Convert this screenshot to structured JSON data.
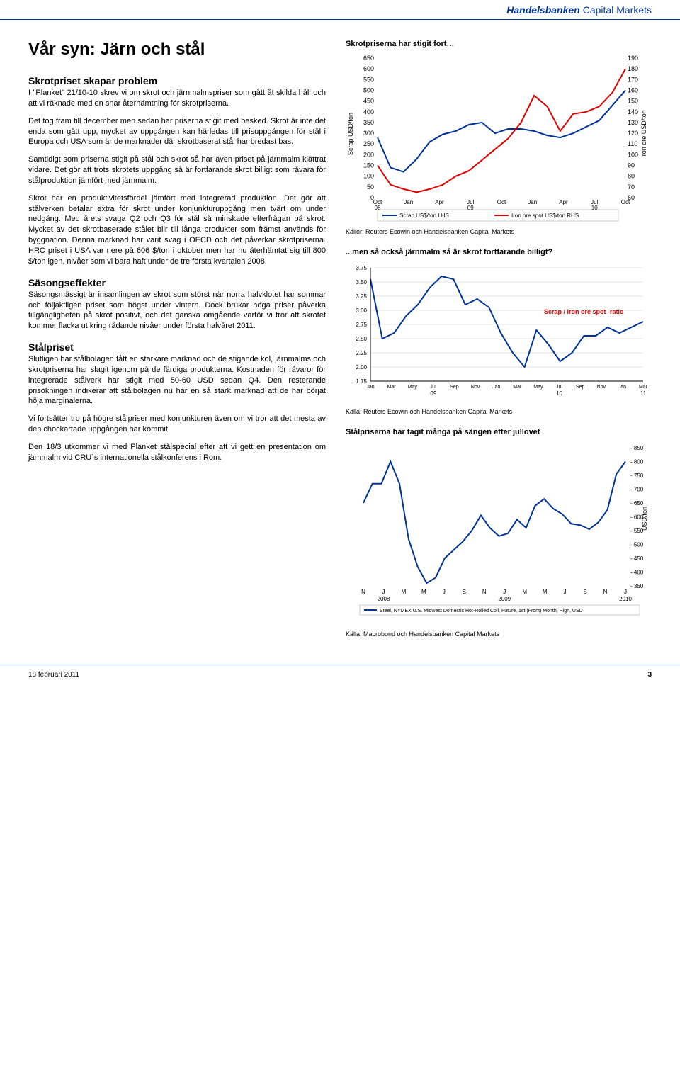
{
  "header": {
    "brand_main": "Handelsbanken",
    "brand_sub": "Capital Markets"
  },
  "title": "Vår syn: Järn och stål",
  "left": {
    "h1": "Skrotpriset skapar problem",
    "p1": "I \"Planket\" 21/10-10 skrev vi om skrot och järnmalmspriser som gått åt skilda håll och att vi räknade med en snar återhämtning för skrotpriserna.",
    "p2": "Det tog fram till december men sedan har priserna stigit med besked. Skrot är inte det enda som gått upp, mycket av uppgången kan härledas till prisuppgången för stål i Europa och USA som är de marknader där skrotbaserat stål har bredast bas.",
    "p3": "Samtidigt som priserna stigit på stål och skrot så har även priset på järnmalm klättrat vidare. Det gör att trots skrotets uppgång så är fortfarande skrot billigt som råvara för stålproduktion jämfört med järnmalm.",
    "p4": "Skrot har en produktivitetsfördel jämfört med integrerad produktion. Det gör att stålverken betalar extra för skrot under konjunkturuppgång men tvärt om under nedgång. Med årets svaga Q2 och Q3 för stål så minskade efterfrågan på skrot. Mycket av det skrotbaserade stålet blir till långa produkter som främst används för byggnation. Denna marknad har varit svag i OECD och det påverkar skrotpriserna. HRC priset i USA var nere på 606 $/ton i oktober men har nu återhämtat sig till 800 $/ton igen, nivåer som vi bara haft under de tre första kvartalen 2008.",
    "h2": "Säsongseffekter",
    "p5": "Säsongsmässigt är insamlingen av skrot som störst när norra halvklotet har sommar och följaktligen priset som högst under vintern. Dock brukar höga priser påverka tillgängligheten på skrot positivt, och det ganska omgående varför vi tror att skrotet kommer flacka ut kring rådande nivåer under första halvåret 2011.",
    "h3": "Stålpriset",
    "p6": "Slutligen har stålbolagen fått en starkare marknad och de stigande kol, järnmalms och skrotpriserna har slagit igenom på de färdiga produkterna. Kostnaden för råvaror för integrerade stålverk har stigit med 50-60 USD sedan Q4. Den resterande prisökningen indikerar att stålbolagen nu har en så stark marknad att de har börjat höja marginalerna.",
    "p7": "Vi fortsätter tro på högre stålpriser med konjunkturen även om vi tror att det mesta av den chockartade uppgången har kommit.",
    "p8": "Den 18/3 utkommer vi med Planket stålspecial efter att vi gett en presentation om järnmalm vid CRU´s internationella stålkonferens i Rom."
  },
  "chart1": {
    "title": "Skrotpriserna har stigit fort…",
    "type": "line",
    "left_label": "Scrap USD/ton",
    "right_label": "Iron ore USD/ton",
    "left_ticks": [
      0,
      50,
      100,
      150,
      200,
      250,
      300,
      350,
      400,
      450,
      500,
      550,
      600,
      650
    ],
    "right_ticks": [
      60,
      70,
      80,
      90,
      100,
      110,
      120,
      130,
      140,
      150,
      160,
      170,
      180,
      190
    ],
    "x_labels": [
      "Oct",
      "Jan",
      "Apr",
      "Jul",
      "Oct",
      "Jan",
      "Apr",
      "Jul",
      "Oct"
    ],
    "x_sublabels": [
      "08",
      "",
      "",
      "09",
      "",
      "",
      "",
      "10",
      ""
    ],
    "blue_series": [
      280,
      140,
      120,
      180,
      260,
      295,
      310,
      340,
      350,
      300,
      320,
      320,
      310,
      290,
      280,
      300,
      330,
      360,
      430,
      500
    ],
    "blue_color": "#003399",
    "red_series": [
      90,
      72,
      68,
      65,
      68,
      72,
      80,
      85,
      95,
      105,
      115,
      130,
      155,
      145,
      122,
      138,
      140,
      145,
      158,
      180
    ],
    "red_color": "#e00000",
    "legend_blue": "Scrap US$/ton LHS",
    "legend_red": "Iron ore spot US$/ton RHS",
    "source": "Källor: Reuters Ecowin och Handelsbanken Capital Markets",
    "background_color": "#ffffff"
  },
  "chart2": {
    "title": "...men så också järnmalm så är skrot fortfarande billigt?",
    "type": "line",
    "y_ticks": [
      1.75,
      2.0,
      2.25,
      2.5,
      2.75,
      3.0,
      3.25,
      3.5,
      3.75
    ],
    "x_labels": [
      "Jan",
      "Mar",
      "May",
      "Jul",
      "Sep",
      "Nov",
      "Jan",
      "Mar",
      "May",
      "Jul",
      "Sep",
      "Nov",
      "Jan",
      "Mar"
    ],
    "x_sublabels": [
      "",
      "",
      "",
      "09",
      "",
      "",
      "",
      "",
      "",
      "10",
      "",
      "",
      "",
      "11"
    ],
    "series": [
      3.55,
      2.5,
      2.6,
      2.9,
      3.1,
      3.4,
      3.6,
      3.55,
      3.1,
      3.2,
      3.05,
      2.6,
      2.25,
      2.0,
      2.65,
      2.4,
      2.1,
      2.25,
      2.55,
      2.55,
      2.7,
      2.6,
      2.7,
      2.8
    ],
    "series_color": "#003399",
    "annotation": "Scrap / Iron ore spot -ratio",
    "annotation_color": "#e00000",
    "source": "Källa: Reuters Ecowin och Handelsbanken Capital Markets",
    "grid_color": "#cccccc"
  },
  "chart3": {
    "title": "Stålpriserna har tagit många på sängen efter jullovet",
    "type": "line",
    "y_ticks": [
      350,
      400,
      450,
      500,
      550,
      600,
      650,
      700,
      750,
      800,
      850
    ],
    "right_label": "USD/ton",
    "x_labels": [
      "N",
      "J",
      "M",
      "M",
      "J",
      "S",
      "N",
      "J",
      "M",
      "M",
      "J",
      "S",
      "N",
      "J"
    ],
    "x_sublabels": [
      "",
      "2008",
      "",
      "",
      "",
      "",
      "",
      "2009",
      "",
      "",
      "",
      "",
      "",
      "2010"
    ],
    "series": [
      650,
      720,
      720,
      800,
      720,
      520,
      420,
      360,
      380,
      450,
      480,
      510,
      550,
      605,
      560,
      530,
      540,
      590,
      560,
      640,
      665,
      630,
      610,
      575,
      570,
      555,
      580,
      625,
      755,
      800
    ],
    "series_color": "#003399",
    "legend": "Steel, NYMEX U.S. Midwest Domestic Hot-Rolled Coil, Future, 1st (Front) Month, High, USD",
    "source": "Källa: Macrobond och Handelsbanken Capital Markets"
  },
  "footer": {
    "date": "18 februari 2011",
    "page": "3"
  }
}
